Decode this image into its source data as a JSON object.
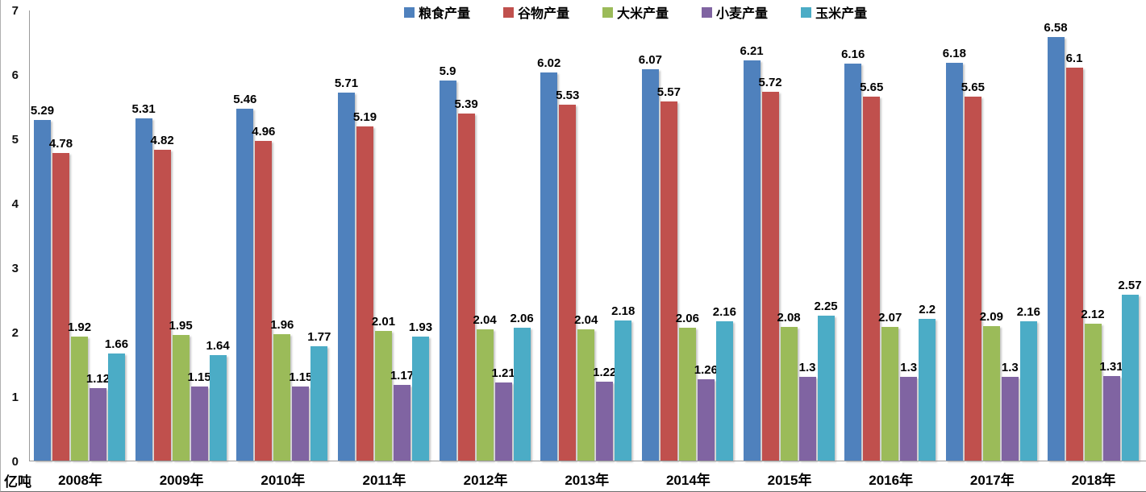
{
  "chart_data": {
    "type": "bar",
    "categories": [
      "2008年",
      "2009年",
      "2010年",
      "2011年",
      "2012年",
      "2013年",
      "2014年",
      "2015年",
      "2016年",
      "2017年",
      "2018年"
    ],
    "series": [
      {
        "name": "粮食产量",
        "color": "#4F81BD",
        "values": [
          5.29,
          5.31,
          5.46,
          5.71,
          5.9,
          6.02,
          6.07,
          6.21,
          6.16,
          6.18,
          6.58
        ]
      },
      {
        "name": "谷物产量",
        "color": "#C0504D",
        "values": [
          4.78,
          4.82,
          4.96,
          5.19,
          5.39,
          5.53,
          5.57,
          5.72,
          5.65,
          5.65,
          6.1
        ]
      },
      {
        "name": "大米产量",
        "color": "#9BBB59",
        "values": [
          1.92,
          1.95,
          1.96,
          2.01,
          2.04,
          2.04,
          2.06,
          2.08,
          2.07,
          2.09,
          2.12
        ]
      },
      {
        "name": "小麦产量",
        "color": "#8064A2",
        "values": [
          1.12,
          1.15,
          1.15,
          1.17,
          1.21,
          1.22,
          1.26,
          1.3,
          1.3,
          1.3,
          1.31
        ]
      },
      {
        "name": "玉米产量",
        "color": "#4BACC6",
        "values": [
          1.66,
          1.64,
          1.77,
          1.93,
          2.06,
          2.18,
          2.16,
          2.25,
          2.2,
          2.16,
          2.57
        ]
      }
    ],
    "title": "",
    "xlabel": "",
    "ylabel": "亿吨",
    "ylim": [
      0,
      7
    ],
    "yticks": [
      "7",
      "6",
      "5",
      "4",
      "3",
      "2",
      "1",
      "0"
    ],
    "grid": false,
    "legend_position": "top",
    "value_labels_shown": true
  }
}
